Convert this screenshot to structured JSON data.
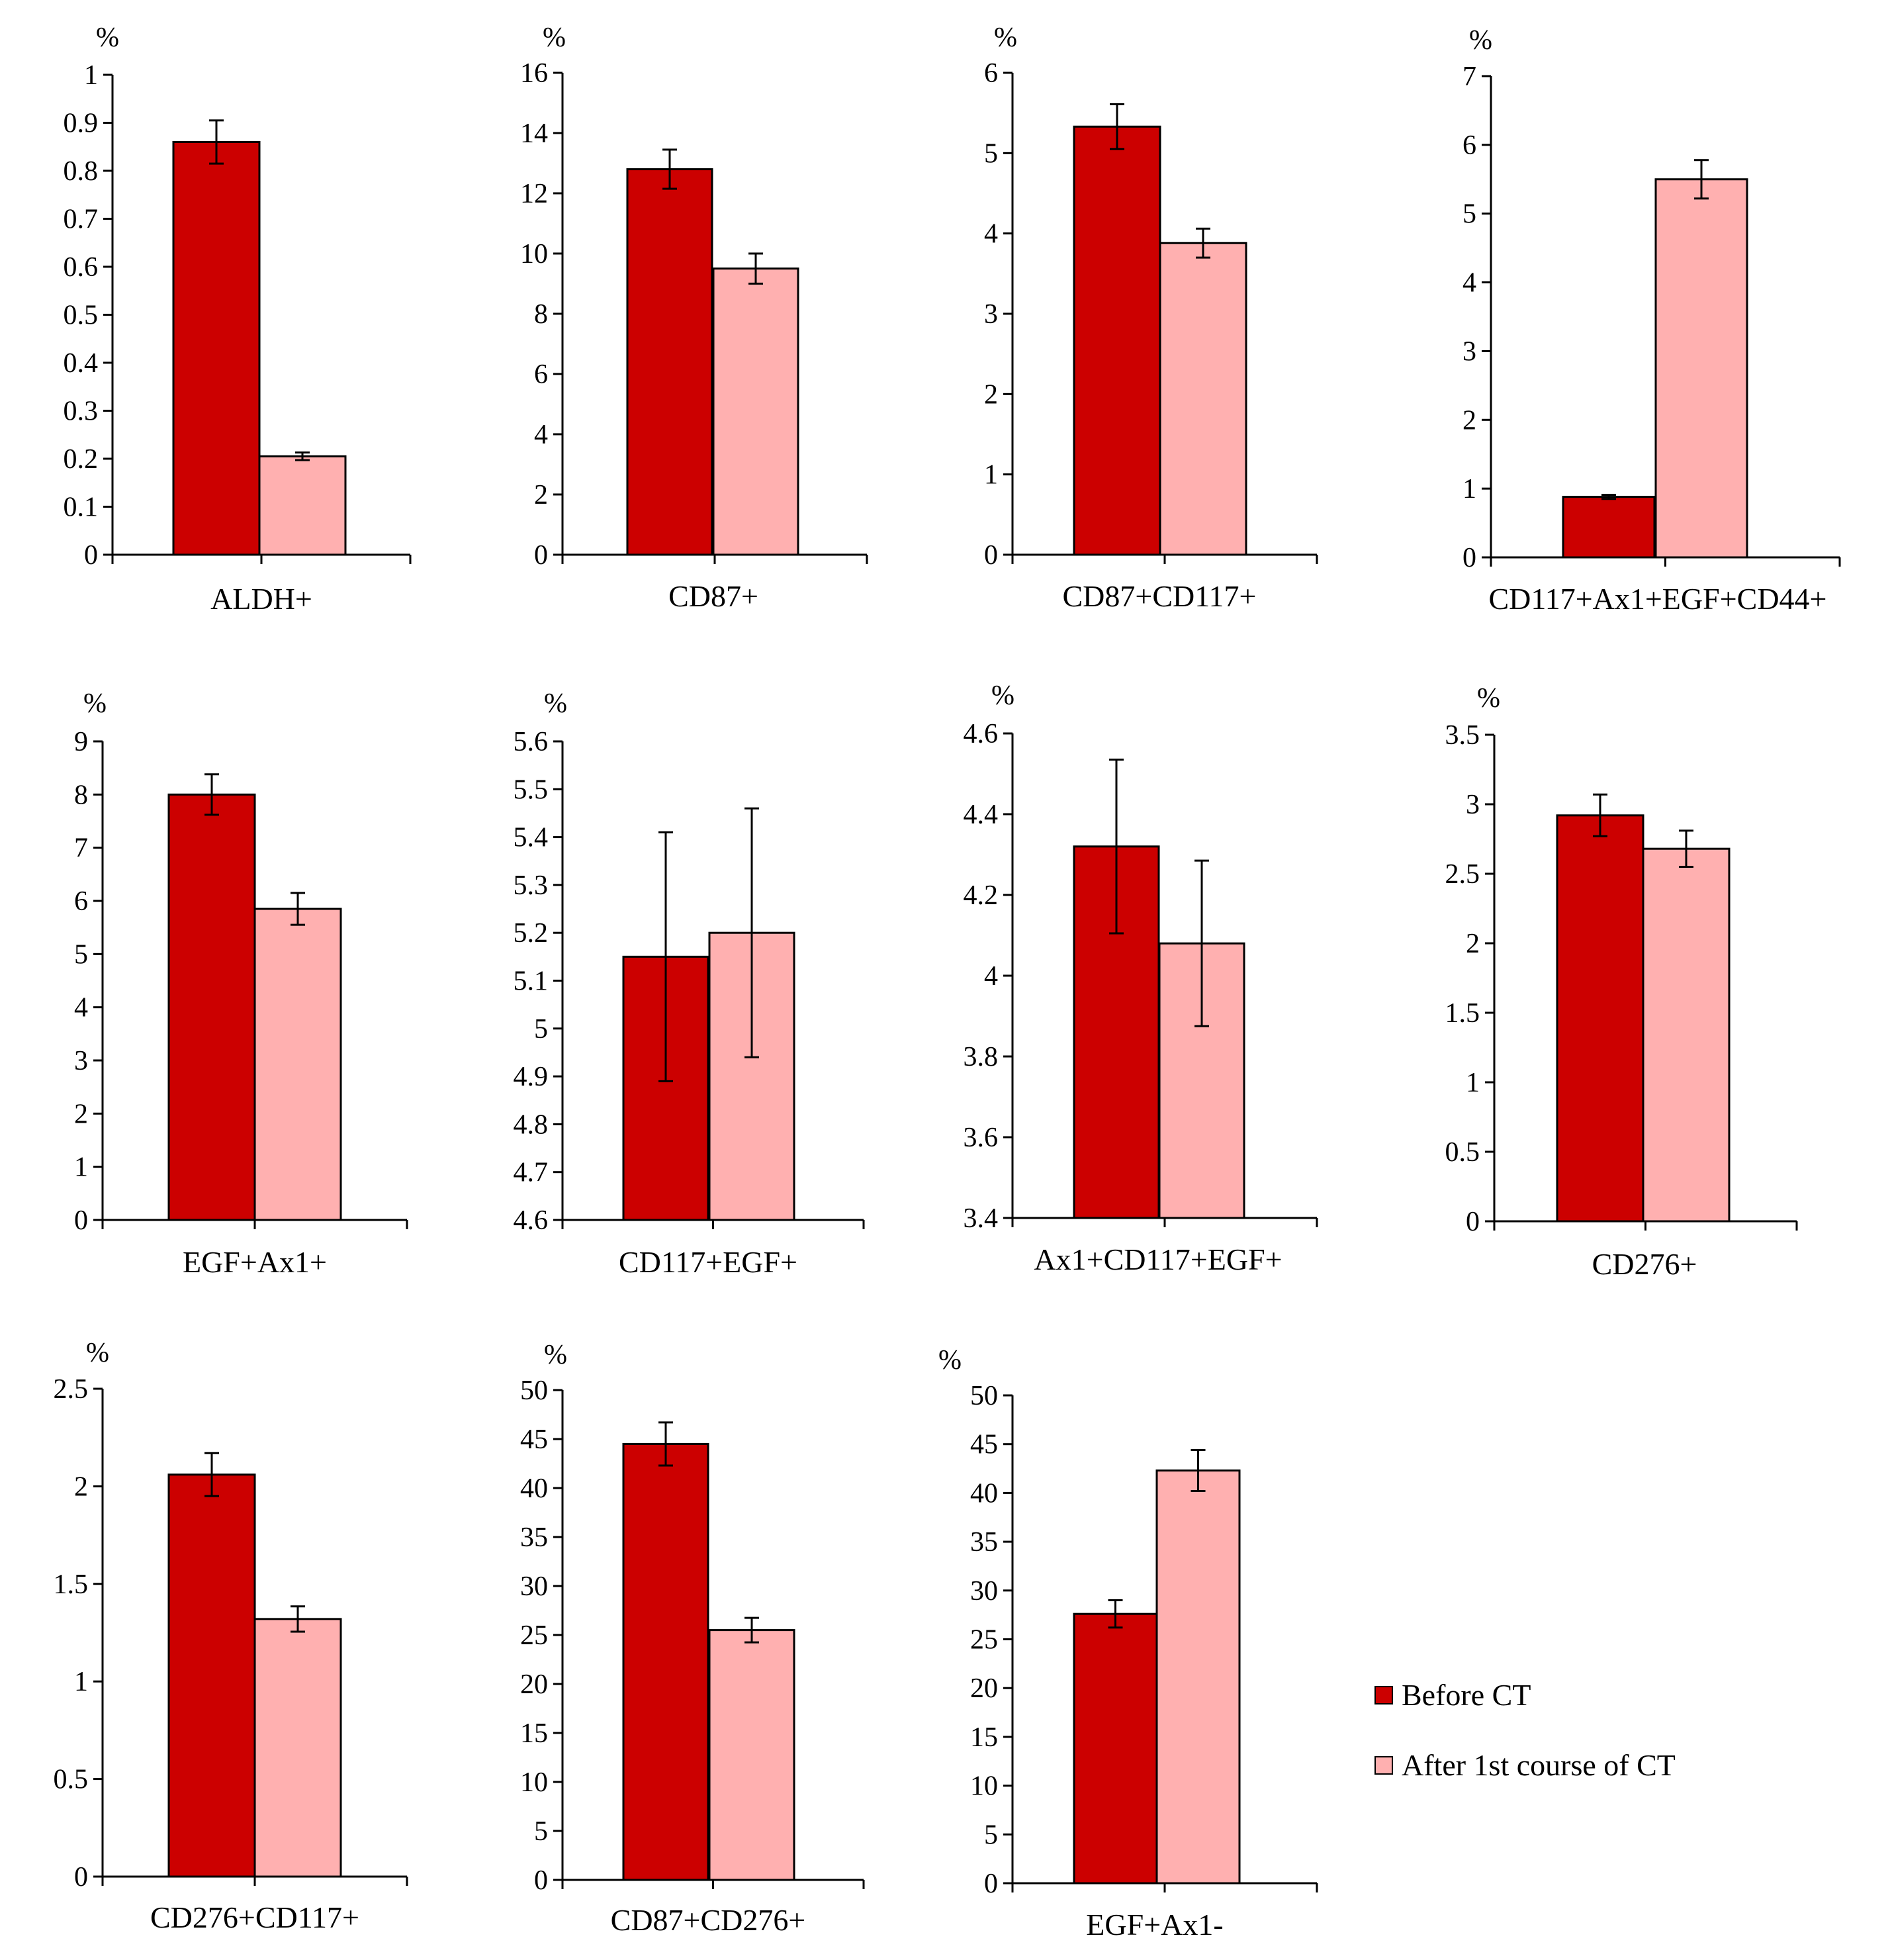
{
  "legend": [
    {
      "label": "Before CT",
      "color": "#cc0000"
    },
    {
      "label": "After 1st course of  CT",
      "color": "#ffb0b0"
    }
  ],
  "chart_data": [
    {
      "type": "bar",
      "ylabel": "%",
      "category": "ALDH+",
      "ylim": [
        0,
        1
      ],
      "ticks": [
        0,
        0.1,
        0.2,
        0.3,
        0.4,
        0.5,
        0.6,
        0.7,
        0.8,
        0.9,
        1
      ],
      "tick_labels": [
        "0",
        "0.1",
        "0.2",
        "0.3",
        "0.4",
        "0.5",
        "0.6",
        "0.7",
        "0.8",
        "0.9",
        "1"
      ],
      "series": [
        {
          "name": "Before CT",
          "value": 0.86,
          "err": 0.045
        },
        {
          "name": "After 1st course of  CT",
          "value": 0.205,
          "err": 0.008
        }
      ]
    },
    {
      "type": "bar",
      "ylabel": "%",
      "category": "CD87+",
      "ylim": [
        0,
        16
      ],
      "ticks": [
        0,
        2,
        4,
        6,
        8,
        10,
        12,
        14,
        16
      ],
      "tick_labels": [
        "0",
        "2",
        "4",
        "6",
        "8",
        "10",
        "12",
        "14",
        "16"
      ],
      "series": [
        {
          "name": "Before CT",
          "value": 12.8,
          "err": 0.65
        },
        {
          "name": "After 1st course of  CT",
          "value": 9.5,
          "err": 0.5
        }
      ]
    },
    {
      "type": "bar",
      "ylabel": "%",
      "category": "CD87+CD117+",
      "ylim": [
        0,
        6
      ],
      "ticks": [
        0,
        1,
        2,
        3,
        4,
        5,
        6
      ],
      "tick_labels": [
        "0",
        "1",
        "2",
        "3",
        "4",
        "5",
        "6"
      ],
      "series": [
        {
          "name": "Before CT",
          "value": 5.33,
          "err": 0.28
        },
        {
          "name": "After 1st course of  CT",
          "value": 3.88,
          "err": 0.18
        }
      ]
    },
    {
      "type": "bar",
      "ylabel": "%",
      "category": "CD117+Ax1+EGF+CD44+",
      "ylim": [
        0,
        7
      ],
      "ticks": [
        0,
        1,
        2,
        3,
        4,
        5,
        6,
        7
      ],
      "tick_labels": [
        "0",
        "1",
        "2",
        "3",
        "4",
        "5",
        "6",
        "7"
      ],
      "series": [
        {
          "name": "Before CT",
          "value": 0.88,
          "err": 0.03
        },
        {
          "name": "After 1st course of  CT",
          "value": 5.5,
          "err": 0.28
        }
      ]
    },
    {
      "type": "bar",
      "ylabel": "%",
      "category": "EGF+Ax1+",
      "ylim": [
        0,
        9
      ],
      "ticks": [
        0,
        1,
        2,
        3,
        4,
        5,
        6,
        7,
        8,
        9
      ],
      "tick_labels": [
        "0",
        "1",
        "2",
        "3",
        "4",
        "5",
        "6",
        "7",
        "8",
        "9"
      ],
      "series": [
        {
          "name": "Before CT",
          "value": 8.0,
          "err": 0.38
        },
        {
          "name": "After 1st course of  CT",
          "value": 5.85,
          "err": 0.3
        }
      ]
    },
    {
      "type": "bar",
      "ylabel": "%",
      "category": "CD117+EGF+",
      "ylim": [
        4.6,
        5.6
      ],
      "ticks": [
        4.6,
        4.7,
        4.8,
        4.9,
        5,
        5.1,
        5.2,
        5.3,
        5.4,
        5.5,
        5.6
      ],
      "tick_labels": [
        "4.6",
        "4.7",
        "4.8",
        "4.9",
        "5",
        "5.1",
        "5.2",
        "5.3",
        "5.4",
        "5.5",
        "5.6"
      ],
      "series": [
        {
          "name": "Before CT",
          "value": 5.15,
          "err": 0.26
        },
        {
          "name": "After 1st course of  CT",
          "value": 5.2,
          "err": 0.26
        }
      ]
    },
    {
      "type": "bar",
      "ylabel": "%",
      "category": "Ax1+CD117+EGF+",
      "ylim": [
        3.4,
        4.6
      ],
      "ticks": [
        3.4,
        3.6,
        3.8,
        4,
        4.2,
        4.4,
        4.6
      ],
      "tick_labels": [
        "3.4",
        "3.6",
        "3.8",
        "4",
        "4.2",
        "4.4",
        "4.6"
      ],
      "series": [
        {
          "name": "Before CT",
          "value": 4.32,
          "err": 0.215
        },
        {
          "name": "After 1st course of  CT",
          "value": 4.08,
          "err": 0.205
        }
      ]
    },
    {
      "type": "bar",
      "ylabel": "%",
      "category": "CD276+",
      "ylim": [
        0,
        3.5
      ],
      "ticks": [
        0,
        0.5,
        1,
        1.5,
        2,
        2.5,
        3,
        3.5
      ],
      "tick_labels": [
        "0",
        "0.5",
        "1",
        "1.5",
        "2",
        "2.5",
        "3",
        "3.5"
      ],
      "series": [
        {
          "name": "Before CT",
          "value": 2.92,
          "err": 0.15
        },
        {
          "name": "After 1st course of  CT",
          "value": 2.68,
          "err": 0.13
        }
      ]
    },
    {
      "type": "bar",
      "ylabel": "%",
      "category": "CD276+CD117+",
      "ylim": [
        0,
        2.5
      ],
      "ticks": [
        0,
        0.5,
        1,
        1.5,
        2,
        2.5
      ],
      "tick_labels": [
        "0",
        "0.5",
        "1",
        "1.5",
        "2",
        "2.5"
      ],
      "series": [
        {
          "name": "Before CT",
          "value": 2.06,
          "err": 0.11
        },
        {
          "name": "After 1st course of  CT",
          "value": 1.32,
          "err": 0.065
        }
      ]
    },
    {
      "type": "bar",
      "ylabel": "%",
      "category": "CD87+CD276+",
      "ylim": [
        0,
        50
      ],
      "ticks": [
        0,
        5,
        10,
        15,
        20,
        25,
        30,
        35,
        40,
        45,
        50
      ],
      "tick_labels": [
        "0",
        "5",
        "10",
        "15",
        "20",
        "25",
        "30",
        "35",
        "40",
        "45",
        "50"
      ],
      "series": [
        {
          "name": "Before CT",
          "value": 44.5,
          "err": 2.2
        },
        {
          "name": "After 1st course of  CT",
          "value": 25.5,
          "err": 1.25
        }
      ]
    },
    {
      "type": "bar",
      "ylabel": "%",
      "category": "EGF+Ax1-",
      "ylim": [
        0,
        50
      ],
      "ticks": [
        0,
        5,
        10,
        15,
        20,
        25,
        30,
        35,
        40,
        45,
        50
      ],
      "tick_labels": [
        "0",
        "5",
        "10",
        "15",
        "20",
        "25",
        "30",
        "35",
        "40",
        "45",
        "50"
      ],
      "series": [
        {
          "name": "Before CT",
          "value": 27.6,
          "err": 1.4
        },
        {
          "name": "After 1st course of  CT",
          "value": 42.3,
          "err": 2.1
        }
      ]
    }
  ]
}
